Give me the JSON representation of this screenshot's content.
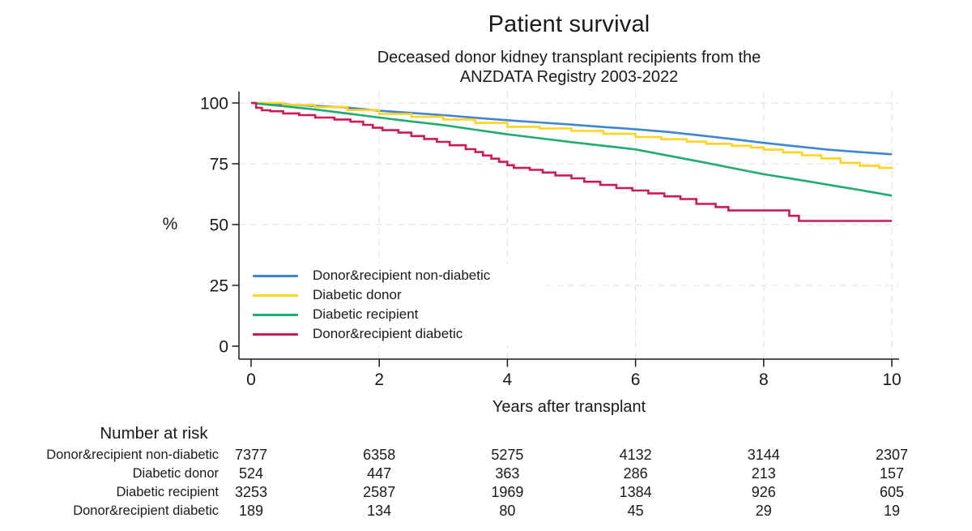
{
  "title": "Patient survival",
  "subtitle_line1": "Deceased donor kidney transplant recipients from the",
  "subtitle_line2": "ANZDATA Registry 2003-2022",
  "chart_data": {
    "type": "line",
    "subtype": "kaplan-meier-survival",
    "title": "Patient survival",
    "subtitle": "Deceased donor kidney transplant recipients from the ANZDATA Registry 2003-2022",
    "xlabel": "Years after transplant",
    "ylabel": "%",
    "xlim": [
      0,
      10
    ],
    "ylim": [
      0,
      100
    ],
    "xticks": [
      0,
      2,
      4,
      6,
      8,
      10
    ],
    "yticks": [
      0,
      25,
      50,
      75,
      100
    ],
    "grid": "light dashed gridlines at axis ticks",
    "legend_position": "inside lower-left",
    "series": [
      {
        "name": "Donor&recipient non-diabetic",
        "color": "#3e86d2",
        "interpolation": "line",
        "points": [
          [
            0,
            100
          ],
          [
            0.5,
            99.4
          ],
          [
            1,
            98.8
          ],
          [
            1.5,
            98.1
          ],
          [
            2,
            96.8
          ],
          [
            2.5,
            95.9
          ],
          [
            3,
            95.0
          ],
          [
            3.5,
            93.9
          ],
          [
            4,
            92.9
          ],
          [
            4.5,
            92.0
          ],
          [
            5,
            91.1
          ],
          [
            5.5,
            90.1
          ],
          [
            6,
            89.2
          ],
          [
            6.5,
            88.1
          ],
          [
            7,
            86.7
          ],
          [
            7.5,
            85.2
          ],
          [
            8,
            83.6
          ],
          [
            8.5,
            82.2
          ],
          [
            9,
            80.8
          ],
          [
            9.5,
            79.8
          ],
          [
            10,
            78.9
          ]
        ]
      },
      {
        "name": "Diabetic donor",
        "color": "#ffd41f",
        "interpolation": "step",
        "points": [
          [
            0,
            100
          ],
          [
            0.5,
            99.2
          ],
          [
            1,
            98.3
          ],
          [
            1.5,
            97.1
          ],
          [
            2,
            95.5
          ],
          [
            2.5,
            94.3
          ],
          [
            3,
            93.2
          ],
          [
            3.5,
            91.8
          ],
          [
            4,
            90.2
          ],
          [
            4.5,
            89.5
          ],
          [
            5,
            88.5
          ],
          [
            5.5,
            87.3
          ],
          [
            6,
            86.0
          ],
          [
            6.4,
            85.1
          ],
          [
            6.8,
            84.1
          ],
          [
            7.1,
            83.2
          ],
          [
            7.5,
            82.4
          ],
          [
            7.8,
            81.7
          ],
          [
            8,
            80.8
          ],
          [
            8.3,
            79.7
          ],
          [
            8.6,
            78.5
          ],
          [
            8.9,
            77.2
          ],
          [
            9.2,
            75.4
          ],
          [
            9.5,
            74.2
          ],
          [
            9.8,
            73.3
          ],
          [
            10,
            72.8
          ]
        ]
      },
      {
        "name": "Diabetic recipient",
        "color": "#1ead6e",
        "interpolation": "line",
        "points": [
          [
            0,
            100
          ],
          [
            0.5,
            98.7
          ],
          [
            1,
            97.3
          ],
          [
            1.5,
            95.7
          ],
          [
            2,
            94.0
          ],
          [
            2.5,
            92.4
          ],
          [
            3,
            90.9
          ],
          [
            3.5,
            89.0
          ],
          [
            4,
            87.1
          ],
          [
            4.5,
            85.5
          ],
          [
            5,
            83.9
          ],
          [
            5.5,
            82.4
          ],
          [
            6,
            80.9
          ],
          [
            6.5,
            78.4
          ],
          [
            7,
            75.9
          ],
          [
            7.5,
            73.3
          ],
          [
            8,
            70.7
          ],
          [
            8.5,
            68.6
          ],
          [
            9,
            66.4
          ],
          [
            9.5,
            64.2
          ],
          [
            10,
            61.9
          ]
        ]
      },
      {
        "name": "Donor&recipient diabetic",
        "color": "#ce1a52",
        "interpolation": "step",
        "points": [
          [
            0,
            100
          ],
          [
            0.08,
            98.0
          ],
          [
            0.17,
            97.0
          ],
          [
            0.3,
            96.6
          ],
          [
            0.5,
            95.7
          ],
          [
            0.75,
            95.0
          ],
          [
            1,
            94.0
          ],
          [
            1.3,
            93.2
          ],
          [
            1.55,
            92.3
          ],
          [
            1.75,
            91.0
          ],
          [
            1.9,
            89.8
          ],
          [
            2.05,
            88.8
          ],
          [
            2.3,
            87.8
          ],
          [
            2.5,
            86.4
          ],
          [
            2.7,
            85.2
          ],
          [
            2.9,
            84.0
          ],
          [
            3.1,
            82.6
          ],
          [
            3.35,
            81.0
          ],
          [
            3.5,
            79.8
          ],
          [
            3.62,
            78.4
          ],
          [
            3.75,
            77.1
          ],
          [
            3.87,
            75.8
          ],
          [
            4,
            74.4
          ],
          [
            4.1,
            73.3
          ],
          [
            4.35,
            72.5
          ],
          [
            4.55,
            71.4
          ],
          [
            4.75,
            70.2
          ],
          [
            5,
            69.0
          ],
          [
            5.2,
            67.6
          ],
          [
            5.45,
            66.3
          ],
          [
            5.7,
            65.0
          ],
          [
            5.95,
            64.0
          ],
          [
            6.2,
            62.8
          ],
          [
            6.45,
            61.6
          ],
          [
            6.7,
            60.5
          ],
          [
            6.95,
            58.5
          ],
          [
            7.25,
            57.2
          ],
          [
            7.45,
            55.8
          ],
          [
            8.4,
            53.6
          ],
          [
            8.55,
            51.5
          ],
          [
            10,
            51.5
          ]
        ]
      }
    ]
  },
  "risk_table": {
    "heading": "Number at risk",
    "time_points": [
      0,
      2,
      4,
      6,
      8,
      10
    ],
    "rows": [
      {
        "label": "Donor&recipient non-diabetic",
        "values": [
          "7377",
          "6358",
          "5275",
          "4132",
          "3144",
          "2307"
        ]
      },
      {
        "label": "Diabetic donor",
        "values": [
          "524",
          "447",
          "363",
          "286",
          "213",
          "157"
        ]
      },
      {
        "label": "Diabetic recipient",
        "values": [
          "3253",
          "2587",
          "1969",
          "1384",
          "926",
          "605"
        ]
      },
      {
        "label": "Donor&recipient diabetic",
        "values": [
          "189",
          "134",
          "80",
          "45",
          "29",
          "19"
        ]
      }
    ]
  }
}
